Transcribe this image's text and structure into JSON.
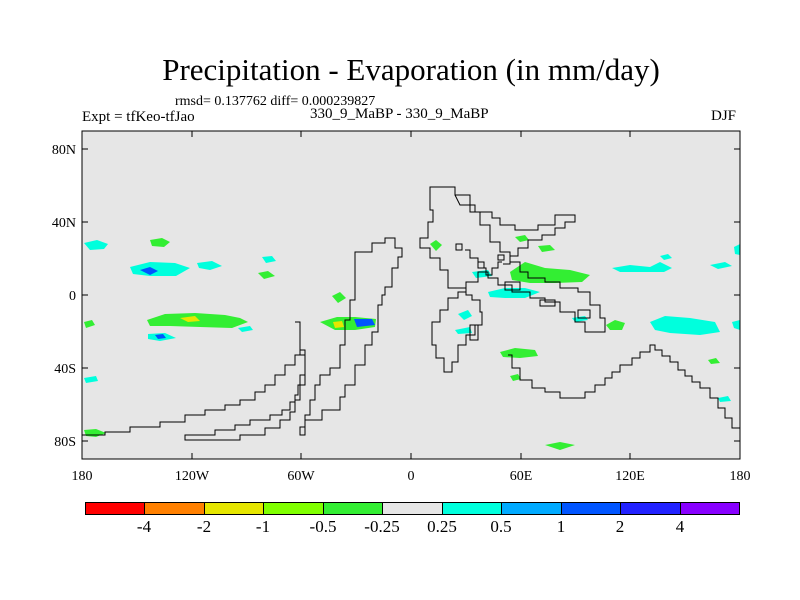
{
  "title": "Precipitation - Evaporation (in mm/day)",
  "stats": "rmsd= 0.137762 diff= 0.000239827",
  "experiment": "Expt = tfKeo-tfJao",
  "cases": "330_9_MaBP - 330_9_MaBP",
  "season": "DJF",
  "map": {
    "lon_range": [
      -180,
      180
    ],
    "lat_range": [
      -90,
      90
    ],
    "background_color": "#e6e6e6",
    "x_tick_labels": [
      "180",
      "120W",
      "60W",
      "0",
      "60E",
      "120E",
      "180"
    ],
    "y_tick_labels": [
      "80N",
      "40N",
      "0",
      "40S",
      "80S"
    ]
  },
  "colorbar": {
    "colors": [
      "#ff0000",
      "#ff8000",
      "#e6e600",
      "#80ff00",
      "#33ee33",
      "#e6e6e6",
      "#00ffdd",
      "#00aaff",
      "#0055ff",
      "#2222ff",
      "#8800ff"
    ],
    "labels": [
      "-4",
      "-2",
      "-1",
      "-0.5",
      "-0.25",
      "0.25",
      "0.5",
      "1",
      "2",
      "4"
    ]
  }
}
